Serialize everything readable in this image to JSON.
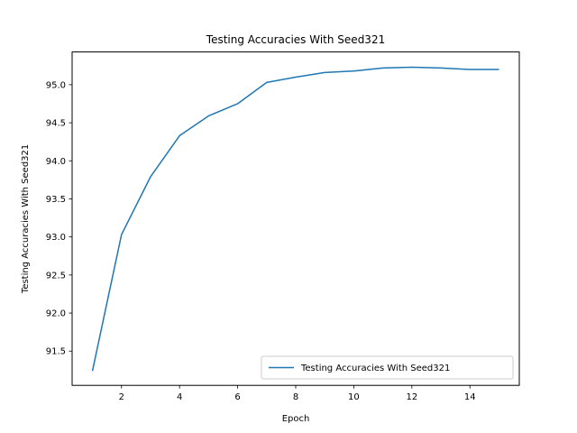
{
  "chart_data": {
    "type": "line",
    "title": "Testing Accuracies With Seed321",
    "xlabel": "Epoch",
    "ylabel": "Testing Accuracies With Seed321",
    "xlim": [
      0.3,
      15.7
    ],
    "ylim": [
      91.05,
      95.43
    ],
    "xticks": [
      2,
      4,
      6,
      8,
      10,
      12,
      14
    ],
    "yticks": [
      91.5,
      92.0,
      92.5,
      93.0,
      93.5,
      94.0,
      94.5,
      95.0
    ],
    "ytick_labels": [
      "91.5",
      "92.0",
      "92.5",
      "93.0",
      "93.5",
      "94.0",
      "94.5",
      "95.0"
    ],
    "grid": false,
    "legend_position": "lower-right",
    "series": [
      {
        "name": "Testing Accuracies With Seed321",
        "color": "#1f77b4",
        "x": [
          1,
          2,
          3,
          4,
          5,
          6,
          7,
          8,
          9,
          10,
          11,
          12,
          13,
          14,
          15
        ],
        "y": [
          91.24,
          93.03,
          93.79,
          94.33,
          94.59,
          94.75,
          95.03,
          95.1,
          95.16,
          95.18,
          95.22,
          95.23,
          95.22,
          95.2,
          95.2
        ]
      }
    ]
  }
}
